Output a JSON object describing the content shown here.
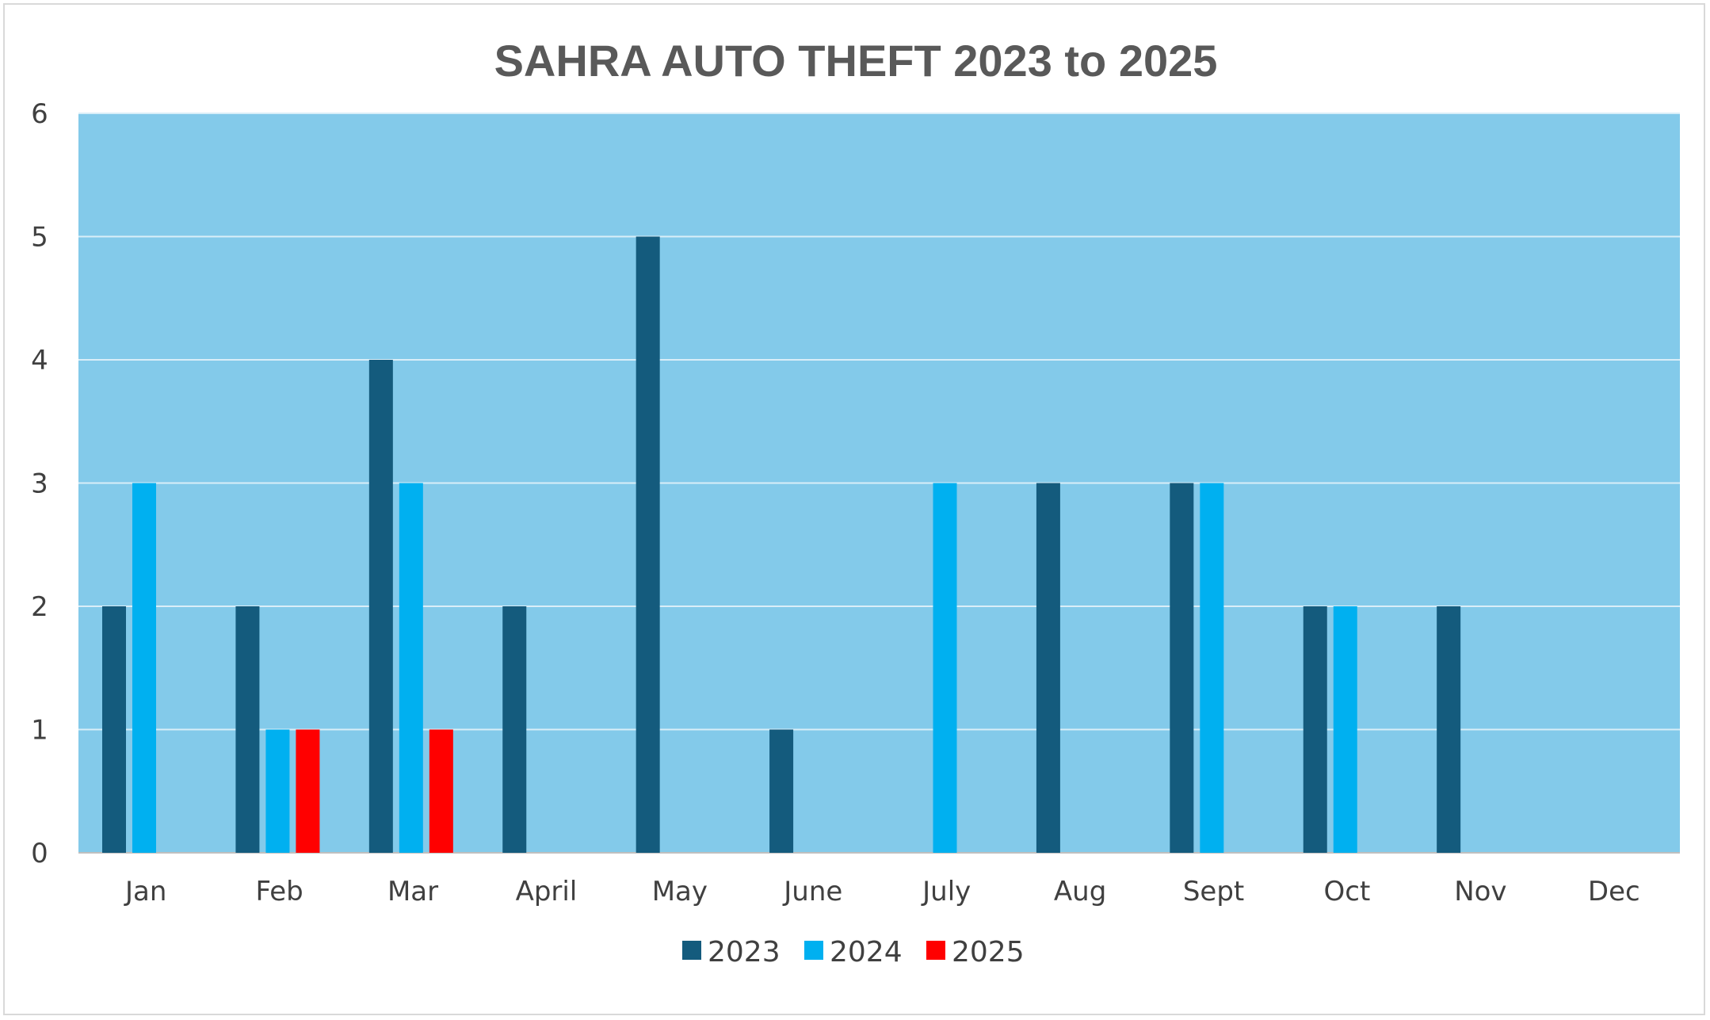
{
  "chart_data": {
    "type": "bar",
    "title": "SAHRA AUTO THEFT 2023 to 2025",
    "categories": [
      "Jan",
      "Feb",
      "Mar",
      "April",
      "May",
      "June",
      "July",
      "Aug",
      "Sept",
      "Oct",
      "Nov",
      "Dec"
    ],
    "series": [
      {
        "name": "2023",
        "color": "#145b7d",
        "values": [
          2,
          2,
          4,
          2,
          5,
          1,
          0,
          3,
          3,
          2,
          2,
          0
        ]
      },
      {
        "name": "2024",
        "color": "#00b0f0",
        "values": [
          3,
          1,
          3,
          0,
          0,
          0,
          3,
          0,
          3,
          2,
          0,
          0
        ]
      },
      {
        "name": "2025",
        "color": "#ff0000",
        "values": [
          0,
          1,
          1,
          0,
          0,
          0,
          0,
          0,
          0,
          0,
          0,
          0
        ]
      }
    ],
    "y_ticks": [
      "0",
      "1",
      "2",
      "3",
      "4",
      "5",
      "6"
    ],
    "ylim": [
      0,
      6
    ],
    "grid": true,
    "plot_background": "#83caea",
    "legend": "bottom-center"
  }
}
